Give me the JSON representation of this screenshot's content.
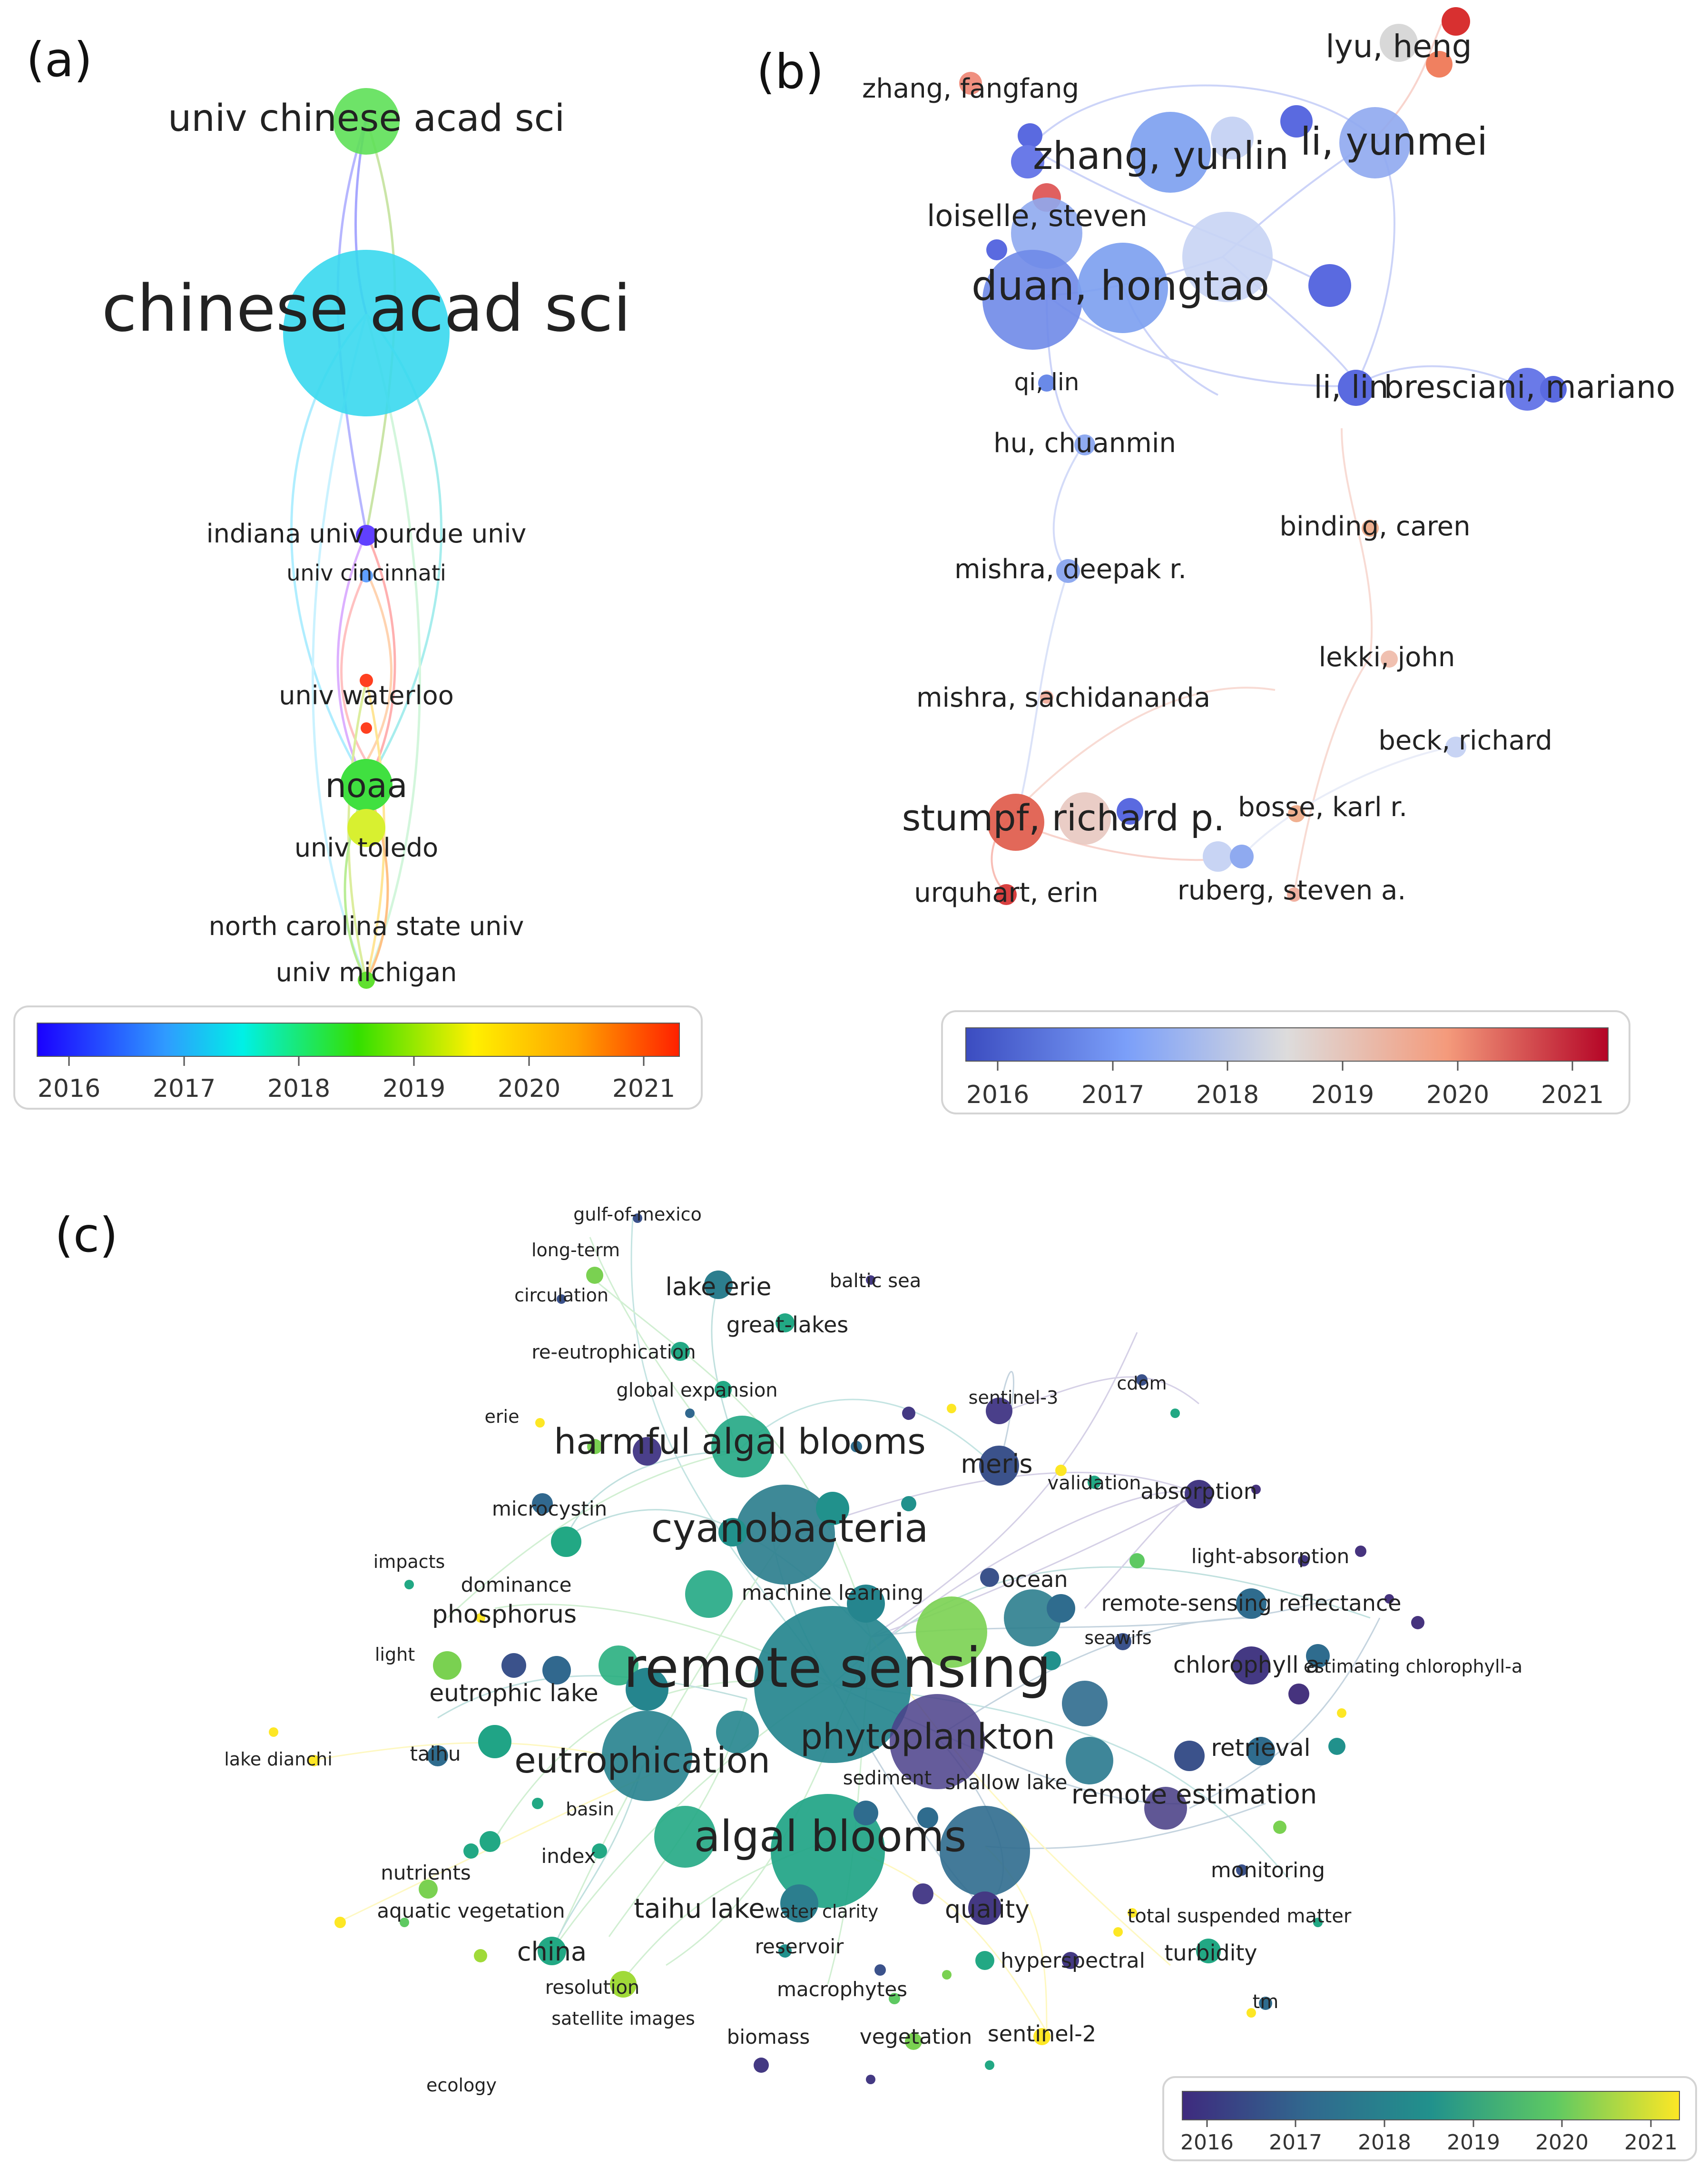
{
  "panels": {
    "a": {
      "label": "(a)"
    },
    "b": {
      "label": "(b)"
    },
    "c": {
      "label": "(c)"
    }
  },
  "colorbar_years": [
    "2016",
    "2017",
    "2018",
    "2019",
    "2020",
    "2021"
  ],
  "panel_a_labels": {
    "univ_chinese_acad_sci": "univ chinese acad sci",
    "chinese_acad_sci": "chinese acad sci",
    "indiana_univ_purdue_univ": "indiana univ purdue univ",
    "univ_cincinnati": "univ cincinnati",
    "univ_waterloo": "univ waterloo",
    "noaa": "noaa",
    "univ_toledo": "univ toledo",
    "north_carolina_state_univ": "north carolina state univ",
    "univ_michigan": "univ michigan"
  },
  "panel_b_labels": {
    "lyu_heng": "lyu, heng",
    "zhang_fangfang": "zhang, fangfang",
    "zhang_yunlin": "zhang, yunlin",
    "li_yunmei": "li, yunmei",
    "loiselle_steven": "loiselle, steven",
    "duan_hongtao": "duan, hongtao",
    "qi_lin": "qi, lin",
    "li_lin": "li, lin",
    "bresciani_mariano": "bresciani, mariano",
    "hu_chuanmin": "hu, chuanmin",
    "binding_caren": "binding, caren",
    "mishra_deepak": "mishra, deepak r.",
    "lekki_john": "lekki, john",
    "mishra_sachidananda": "mishra, sachidananda",
    "beck_richard": "beck, richard",
    "stumpf_richard": "stumpf, richard p.",
    "bosse_karl": "bosse, karl r.",
    "urquhart_erin": "urquhart, erin",
    "ruberg_steven": "ruberg, steven a."
  },
  "panel_c_labels": {
    "gulf_of_mexico": "gulf-of-mexico",
    "long_term": "long-term",
    "circulation": "circulation",
    "lake_erie": "lake erie",
    "baltic_sea": "baltic sea",
    "great_lakes": "great-lakes",
    "re_eutrophication": "re-eutrophication",
    "global_expansion": "global expansion",
    "sentinel_3": "sentinel-3",
    "cdom": "cdom",
    "erie": "erie",
    "harmful_algal_blooms": "harmful algal blooms",
    "meris": "meris",
    "validation": "validation",
    "absorption": "absorption",
    "microcystin": "microcystin",
    "cyanobacteria": "cyanobacteria",
    "light_absorption": "light-absorption",
    "impacts": "impacts",
    "dominance": "dominance",
    "machine_learning": "machine learning",
    "ocean": "ocean",
    "phosphorus": "phosphorus",
    "remote_sensing_reflectance": "remote-sensing reflectance",
    "seawifs": "seawifs",
    "light": "light",
    "chlorophyll_a": "chlorophyll a",
    "estimating_chlorophyll_a": "estimating chlorophyll-a",
    "remote_sensing": "remote sensing",
    "eutrophic_lake": "eutrophic lake",
    "phytoplankton": "phytoplankton",
    "retrieval": "retrieval",
    "lake_dianchi": "lake dianchi",
    "taihu": "taihu",
    "eutrophication": "eutrophication",
    "sediment": "sediment",
    "shallow_lake": "shallow lake",
    "remote_estimation": "remote estimation",
    "basin": "basin",
    "algal_blooms": "algal blooms",
    "index": "index",
    "monitoring": "monitoring",
    "nutrients": "nutrients",
    "aquatic_vegetation": "aquatic vegetation",
    "taihu_lake": "taihu lake",
    "water_clarity": "water clarity",
    "quality": "quality",
    "total_suspended_matter": "total suspended matter",
    "china": "china",
    "reservoir": "reservoir",
    "hyperspectral": "hyperspectral",
    "turbidity": "turbidity",
    "resolution": "resolution",
    "macrophytes": "macrophytes",
    "tm": "tm",
    "satellite_images": "satellite images",
    "biomass": "biomass",
    "vegetation": "vegetation",
    "sentinel_2": "sentinel-2",
    "ecology": "ecology"
  }
}
